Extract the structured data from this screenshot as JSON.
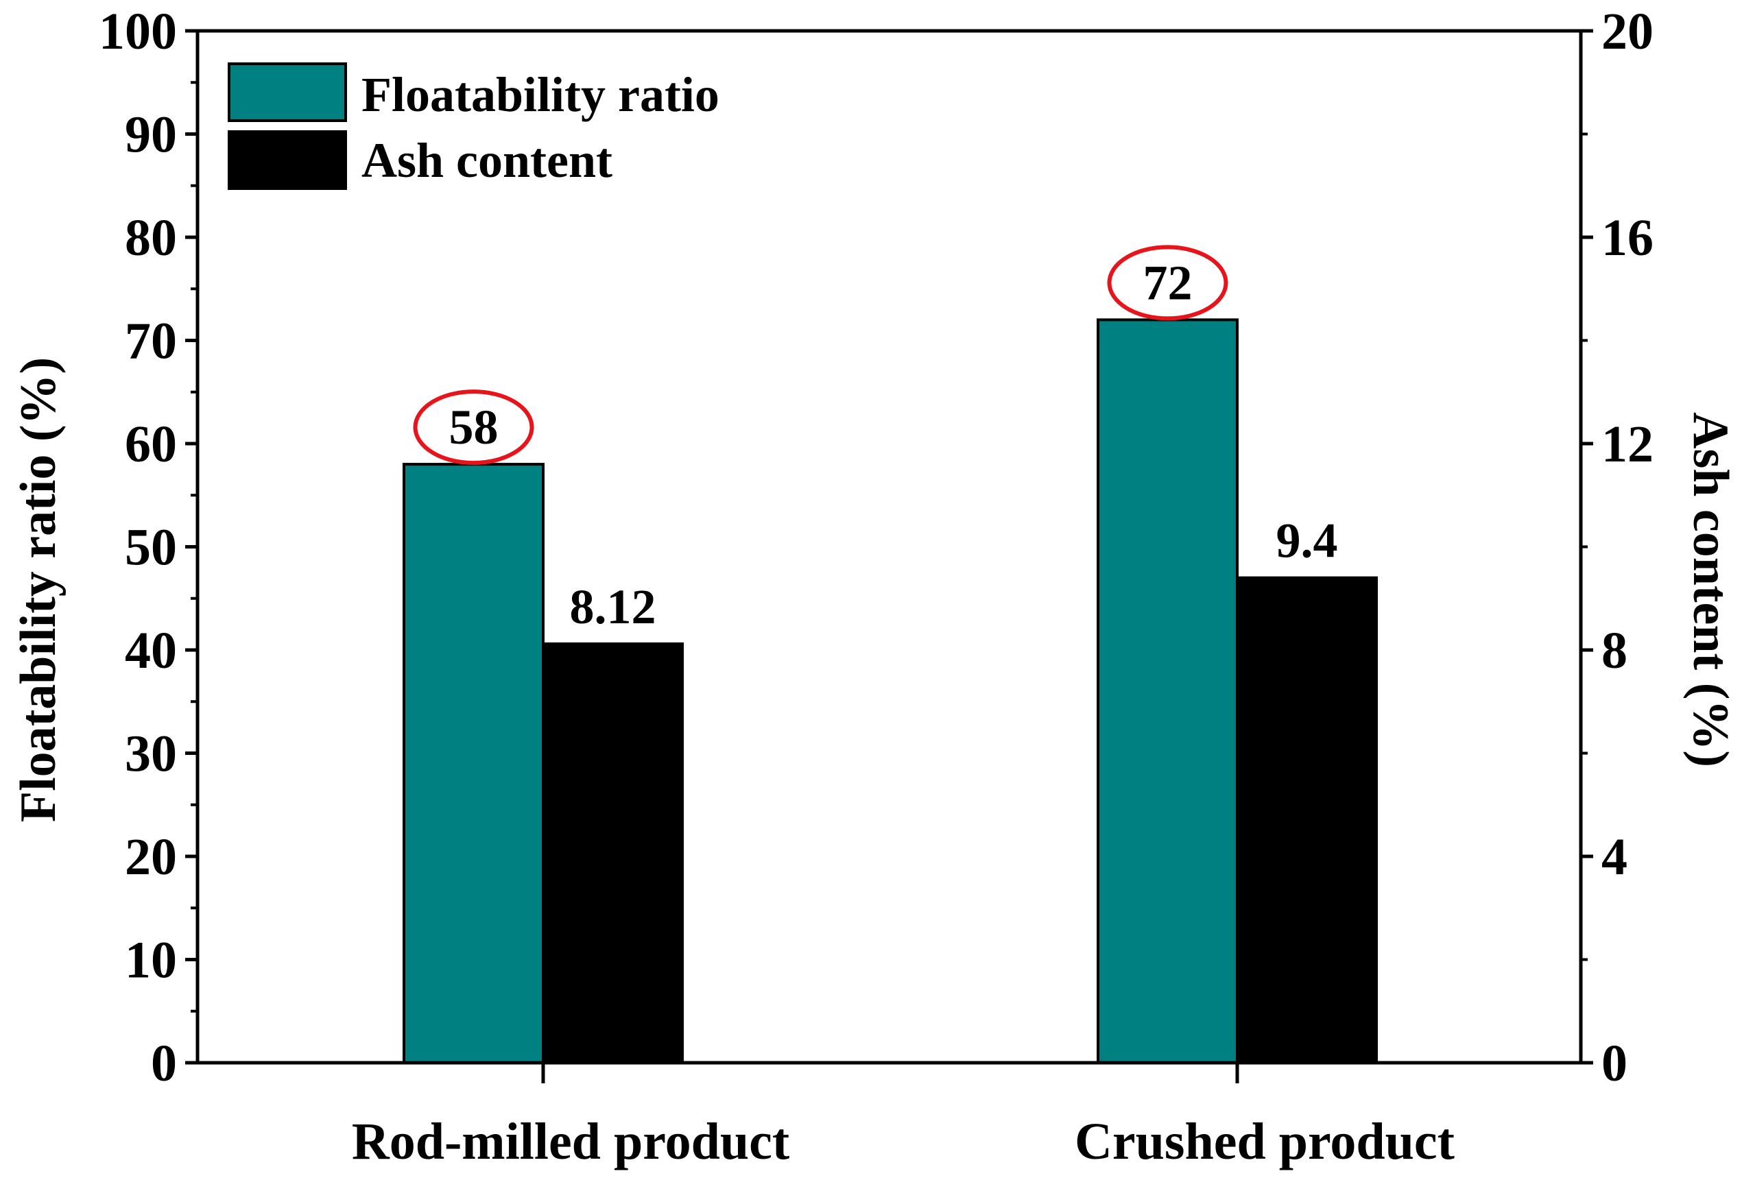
{
  "chart_data": {
    "type": "bar",
    "categories": [
      "Rod-milled product",
      "Crushed product"
    ],
    "series": [
      {
        "name": "Floatability ratio",
        "axis": "left",
        "color": "#008080",
        "values": [
          58,
          72
        ],
        "labels": [
          "58",
          "72"
        ]
      },
      {
        "name": "Ash content",
        "axis": "right",
        "color": "#000000",
        "values": [
          8.12,
          9.4
        ],
        "labels": [
          "8.12",
          "9.4"
        ]
      }
    ],
    "ylabel": "Floatability ratio (%)",
    "y2label": "Ash content (%)",
    "ylim": [
      0,
      100
    ],
    "y2lim": [
      0,
      20
    ],
    "yticks": [
      0,
      10,
      20,
      30,
      40,
      50,
      60,
      70,
      80,
      90,
      100
    ],
    "y2ticks": [
      0,
      4,
      8,
      12,
      16,
      20
    ],
    "highlight_color": "#e8141c",
    "highlighted": "Floatability ratio labels circled"
  }
}
